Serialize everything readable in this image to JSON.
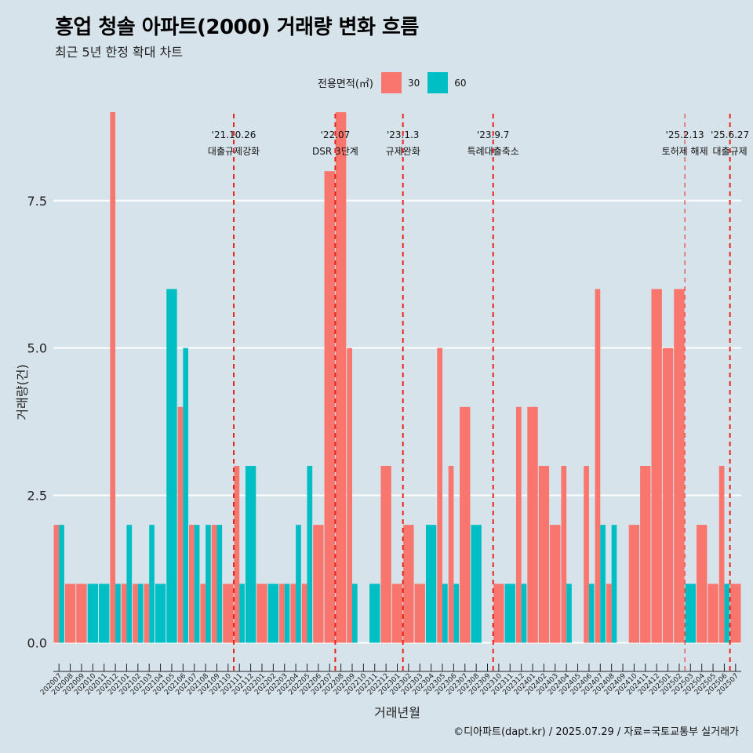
{
  "header": {
    "title": "흥업 청솔 아파트(2000) 거래량 변화 흐름",
    "subtitle": "최근 5년 한정 확대 차트"
  },
  "caption": "©디아파트(dapt.kr) / 2025.07.29 / 자료=국토교통부 실거래가",
  "chart_data": {
    "type": "bar",
    "title": "흥업 청솔 아파트(2000) 거래량 변화 흐름",
    "subtitle": "최근 5년 한정 확대 차트",
    "xlabel": "거래년월",
    "ylabel": "거래량(건)",
    "ylim": [
      -0.3,
      9.2
    ],
    "yticks": [
      0.0,
      2.5,
      5.0,
      7.5
    ],
    "ytick_labels": [
      "0.0",
      "2.5",
      "5.0",
      "7.5"
    ],
    "legend_title": "전용면적(㎡)",
    "legend_position": "top",
    "series_colors": {
      "30": "#f8766d",
      "60": "#00bfc4"
    },
    "categories": [
      "202007",
      "202008",
      "202009",
      "202010",
      "202011",
      "202012",
      "202101",
      "202102",
      "202103",
      "202104",
      "202105",
      "202106",
      "202107",
      "202108",
      "202109",
      "202110",
      "202111",
      "202112",
      "202201",
      "202202",
      "202203",
      "202204",
      "202205",
      "202206",
      "202207",
      "202208",
      "202209",
      "202210",
      "202211",
      "202212",
      "202301",
      "202302",
      "202303",
      "202304",
      "202305",
      "202306",
      "202307",
      "202308",
      "202309",
      "202310",
      "202311",
      "202312",
      "202401",
      "202402",
      "202403",
      "202404",
      "202405",
      "202406",
      "202407",
      "202408",
      "202409",
      "202410",
      "202411",
      "202412",
      "202501",
      "202502",
      "202503",
      "202504",
      "202505",
      "202506",
      "202507"
    ],
    "series": [
      {
        "name": "30",
        "values": [
          2,
          1,
          1,
          0,
          0,
          9,
          1,
          1,
          1,
          0,
          0,
          4,
          2,
          1,
          2,
          1,
          3,
          0,
          1,
          0,
          1,
          1,
          1,
          2,
          8,
          9,
          5,
          0,
          0,
          3,
          1,
          2,
          1,
          0,
          5,
          3,
          4,
          0,
          0,
          1,
          0,
          4,
          4,
          3,
          2,
          3,
          0,
          3,
          6,
          1,
          0,
          2,
          3,
          6,
          5,
          6,
          0,
          2,
          1,
          3,
          1
        ]
      },
      {
        "name": "60",
        "values": [
          2,
          0,
          0,
          1,
          1,
          1,
          2,
          1,
          2,
          1,
          6,
          5,
          2,
          2,
          2,
          0,
          1,
          3,
          0,
          1,
          1,
          2,
          3,
          0,
          0,
          0,
          1,
          0,
          1,
          0,
          0,
          0,
          0,
          2,
          1,
          1,
          0,
          2,
          0,
          0,
          1,
          1,
          0,
          0,
          0,
          1,
          0,
          1,
          2,
          2,
          0,
          0,
          0,
          0,
          0,
          0,
          1,
          0,
          0,
          1,
          0
        ]
      }
    ],
    "events": [
      {
        "after": "202110",
        "date": "'21.10.26",
        "label": "대출규제강화",
        "lw": 2
      },
      {
        "after": "202207",
        "date": "'22.07",
        "label": "DSR 3단계",
        "lw": 2
      },
      {
        "after": "202301",
        "date": "'23.1.3",
        "label": "규제완화",
        "lw": 2
      },
      {
        "after": "202309",
        "date": "'23.9.7",
        "label": "특례대출축소",
        "lw": 2
      },
      {
        "after": "202502",
        "date": "'25.2.13",
        "label": "토허제 해제",
        "lw": 1
      },
      {
        "after": "202506",
        "date": "'25.6.27",
        "label": "대출규제",
        "lw": 2
      }
    ]
  }
}
